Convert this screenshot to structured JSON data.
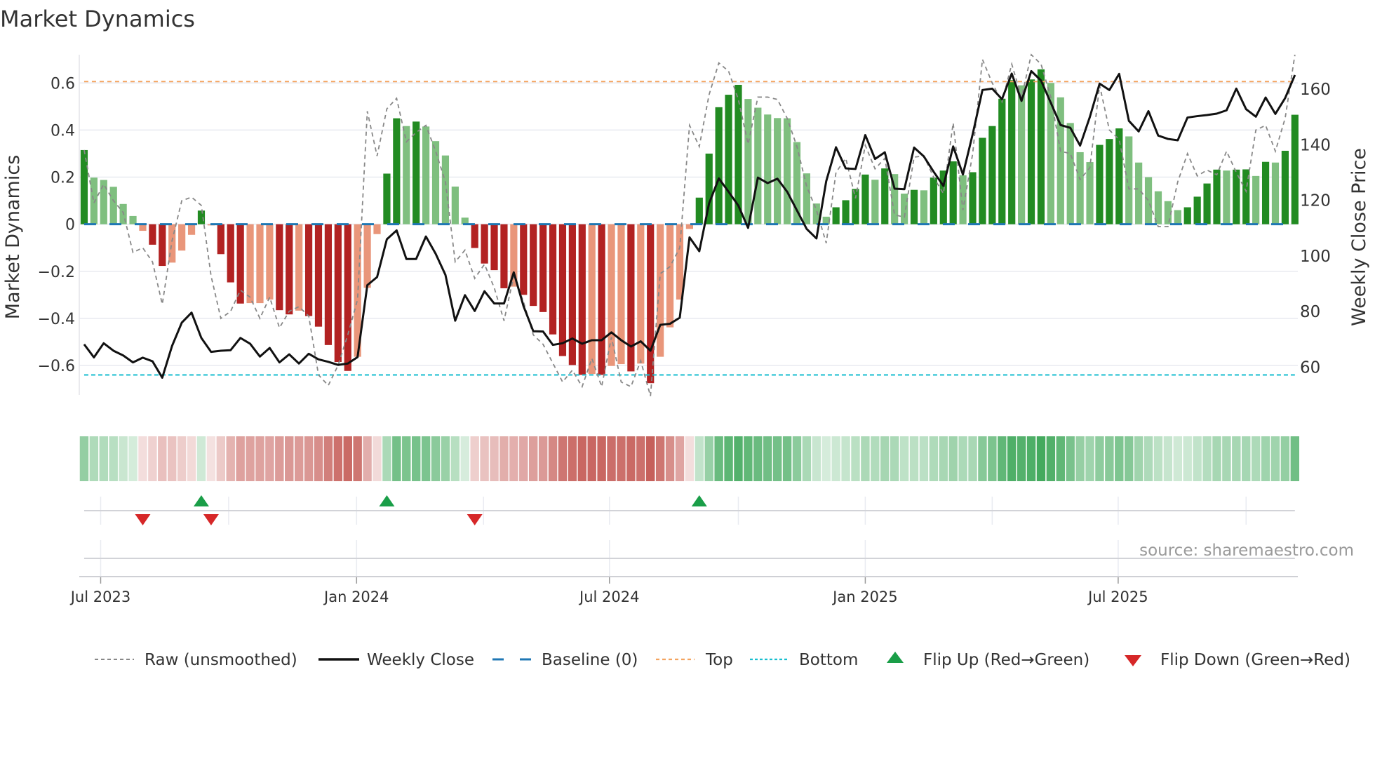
{
  "title": "Market Dynamics",
  "source": "source: sharemaestro.com",
  "colors": {
    "green_strong": "#228b22",
    "green_weak": "#7fbf7f",
    "red_strong": "#b22222",
    "red_weak": "#e9967a",
    "heat_green": "#3fa85a",
    "heat_red": "#c65f5a",
    "close": "#111111",
    "raw": "#888888",
    "baseline": "#1f77b4",
    "top": "#f4a460",
    "bottom": "#17becf",
    "flip_up": "#1a9e48",
    "flip_down": "#d62728"
  },
  "chart_data": {
    "type": "bar",
    "title": "Market Dynamics",
    "ylabel": "Market Dynamics",
    "y2label": "Weekly Close Price",
    "xlabel": "",
    "ylim": [
      -0.725,
      0.72
    ],
    "y2lim": [
      50,
      172.4
    ],
    "xlim": [
      -0.5,
      124.3
    ],
    "grid": "horizontal",
    "yticks": [
      -0.6,
      -0.4,
      -0.2,
      0,
      0.2,
      0.4,
      0.6
    ],
    "ytick_labels": [
      "−0.6",
      "−0.4",
      "−0.2",
      "0",
      "0.2",
      "0.4",
      "0.6"
    ],
    "y2ticks": [
      60,
      80,
      100,
      120,
      140,
      160
    ],
    "y2tick_labels": [
      "60",
      "80",
      "100",
      "120",
      "140",
      "160"
    ],
    "xticks": [
      1.69,
      27.9,
      53.8,
      80.0,
      105.9
    ],
    "xtick_labels": [
      "Jul 2023",
      "Jan 2024",
      "Jul 2024",
      "Jan 2025",
      "Jul 2025"
    ],
    "xminor": [
      14.8,
      40.9,
      67.0,
      93.0,
      119.0
    ],
    "baseline": 0,
    "top": 0.606,
    "bottom": -0.64,
    "series": [
      {
        "name": "Market Dynamics",
        "type": "bar",
        "values": [
          0.315,
          0.198,
          0.188,
          0.159,
          0.086,
          0.035,
          -0.028,
          -0.087,
          -0.177,
          -0.163,
          -0.112,
          -0.045,
          0.058,
          -0.005,
          -0.127,
          -0.247,
          -0.337,
          -0.335,
          -0.335,
          -0.32,
          -0.365,
          -0.383,
          -0.367,
          -0.39,
          -0.435,
          -0.513,
          -0.585,
          -0.623,
          -0.563,
          -0.27,
          -0.042,
          0.215,
          0.45,
          0.417,
          0.436,
          0.415,
          0.353,
          0.292,
          0.16,
          0.028,
          -0.101,
          -0.167,
          -0.195,
          -0.272,
          -0.265,
          -0.3,
          -0.347,
          -0.373,
          -0.468,
          -0.56,
          -0.598,
          -0.64,
          -0.636,
          -0.64,
          -0.602,
          -0.594,
          -0.625,
          -0.592,
          -0.675,
          -0.563,
          -0.438,
          -0.32,
          -0.02,
          0.113,
          0.3,
          0.497,
          0.55,
          0.592,
          0.532,
          0.495,
          0.466,
          0.451,
          0.45,
          0.349,
          0.216,
          0.088,
          0.032,
          0.072,
          0.102,
          0.15,
          0.211,
          0.189,
          0.237,
          0.213,
          0.13,
          0.146,
          0.144,
          0.198,
          0.228,
          0.267,
          0.208,
          0.221,
          0.367,
          0.417,
          0.533,
          0.612,
          0.59,
          0.615,
          0.658,
          0.6,
          0.539,
          0.43,
          0.306,
          0.264,
          0.337,
          0.362,
          0.407,
          0.373,
          0.262,
          0.2,
          0.14,
          0.098,
          0.06,
          0.072,
          0.117,
          0.173,
          0.232,
          0.228,
          0.232,
          0.233,
          0.205,
          0.265,
          0.262,
          0.312,
          0.465
        ]
      },
      {
        "name": "Raw (unsmoothed)",
        "type": "line",
        "values": [
          0.315,
          0.09,
          0.17,
          0.1,
          0.05,
          -0.12,
          -0.1,
          -0.16,
          -0.34,
          -0.07,
          0.1,
          0.115,
          0.08,
          -0.22,
          -0.4,
          -0.37,
          -0.28,
          -0.31,
          -0.4,
          -0.31,
          -0.44,
          -0.37,
          -0.35,
          -0.39,
          -0.64,
          -0.685,
          -0.6,
          -0.47,
          -0.32,
          0.48,
          0.29,
          0.49,
          0.535,
          0.35,
          0.39,
          0.42,
          0.31,
          0.18,
          -0.16,
          -0.11,
          -0.23,
          -0.17,
          -0.27,
          -0.41,
          -0.22,
          -0.33,
          -0.47,
          -0.51,
          -0.59,
          -0.67,
          -0.62,
          -0.69,
          -0.57,
          -0.69,
          -0.48,
          -0.67,
          -0.69,
          -0.58,
          -0.73,
          -0.21,
          -0.18,
          -0.1,
          0.42,
          0.33,
          0.55,
          0.685,
          0.65,
          0.53,
          0.34,
          0.54,
          0.54,
          0.53,
          0.45,
          0.33,
          0.16,
          0.06,
          -0.08,
          0.22,
          0.28,
          0.11,
          0.335,
          0.235,
          0.28,
          0.04,
          0.03,
          0.285,
          0.29,
          0.2,
          0.13,
          0.43,
          0.06,
          0.3,
          0.7,
          0.6,
          0.52,
          0.68,
          0.54,
          0.72,
          0.68,
          0.54,
          0.31,
          0.3,
          0.19,
          0.24,
          0.59,
          0.4,
          0.36,
          0.15,
          0.15,
          0.1,
          -0.01,
          -0.01,
          0.18,
          0.3,
          0.205,
          0.23,
          0.21,
          0.31,
          0.22,
          0.14,
          0.4,
          0.42,
          0.31,
          0.45,
          0.72
        ]
      },
      {
        "name": "Weekly Close",
        "type": "line",
        "axis": "right",
        "values": [
          68.2,
          63.5,
          68.6,
          65.9,
          64.2,
          61.7,
          63.4,
          62.1,
          56.2,
          67.6,
          76.0,
          79.6,
          70.5,
          65.5,
          65.9,
          66.1,
          70.5,
          68.4,
          63.8,
          66.9,
          61.7,
          64.6,
          61.3,
          64.8,
          62.8,
          61.9,
          60.8,
          61.3,
          63.6,
          89.5,
          92.4,
          106.0,
          109.2,
          98.9,
          98.9,
          107.0,
          100.8,
          93.2,
          76.7,
          85.9,
          80.2,
          87.3,
          82.9,
          82.9,
          94.1,
          81.9,
          72.9,
          72.8,
          68.0,
          68.6,
          70.3,
          68.4,
          69.7,
          69.7,
          72.5,
          69.7,
          67.4,
          69.3,
          65.9,
          75.2,
          75.6,
          77.8,
          106.7,
          101.7,
          118.9,
          127.9,
          123.1,
          118.1,
          110.1,
          128.2,
          126.2,
          127.8,
          123.1,
          116.4,
          109.7,
          106.3,
          126.9,
          139.1,
          131.5,
          131.3,
          143.5,
          134.9,
          137.3,
          124.2,
          124.0,
          139.0,
          135.8,
          130.3,
          125.2,
          139.4,
          129.3,
          143.8,
          159.7,
          160.2,
          156.4,
          165.6,
          155.8,
          166.5,
          163.1,
          155.1,
          147.1,
          146.1,
          139.7,
          150.0,
          162.0,
          159.7,
          165.5,
          148.6,
          144.8,
          152.1,
          143.3,
          142.1,
          141.6,
          149.8,
          150.3,
          150.7,
          151.2,
          152.4,
          160.2,
          152.8,
          150.1,
          157.0,
          151.1,
          156.8,
          165.1
        ]
      }
    ],
    "flip_up": [
      12,
      31,
      63
    ],
    "flip_down": [
      6,
      13,
      40
    ],
    "legend": {
      "position": "bottom",
      "entries": [
        "Raw (unsmoothed)",
        "Weekly Close",
        "Baseline (0)",
        "Top",
        "Bottom",
        "Flip Up (Red→Green)",
        "Flip Down (Green→Red)"
      ]
    }
  }
}
